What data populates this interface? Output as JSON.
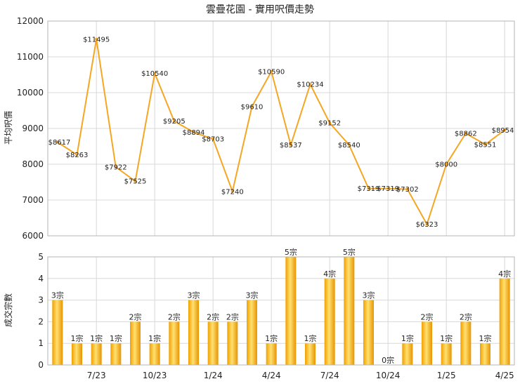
{
  "chart_data": [
    {
      "type": "line",
      "title": "雲疊花園 - 實用呎價走勢",
      "ylabel": "平均呎價",
      "ylim": [
        6000,
        12000
      ],
      "yticks": [
        6000,
        7000,
        8000,
        9000,
        10000,
        11000,
        12000
      ],
      "grid": true,
      "color": "#f5a623",
      "labels": [
        "$8617",
        "$8263",
        "$11495",
        "$7922",
        "$7525",
        "$10540",
        "$9205",
        "$8894",
        "$8703",
        "$7240",
        "$9610",
        "$10590",
        "$8537",
        "$10234",
        "$9152",
        "$8540",
        "$7319",
        "$7319",
        "$7302",
        "$6323",
        "$8000",
        "$8862",
        "$8551",
        "$8954"
      ],
      "values": [
        8617,
        8263,
        11495,
        7922,
        7525,
        10540,
        9205,
        8894,
        8703,
        7240,
        9610,
        10590,
        8537,
        10234,
        9152,
        8540,
        7319,
        7319,
        7302,
        6323,
        8000,
        8862,
        8551,
        8954
      ]
    },
    {
      "type": "bar",
      "ylabel": "成交宗數",
      "ylim": [
        0,
        5
      ],
      "yticks": [
        0,
        1,
        2,
        3,
        4,
        5
      ],
      "grid": true,
      "color": "#f5a623",
      "x_tick_labels": [
        "7/23",
        "10/23",
        "1/24",
        "4/24",
        "7/24",
        "10/24",
        "1/25",
        "4/25"
      ],
      "labels": [
        "3宗",
        "1宗",
        "1宗",
        "1宗",
        "2宗",
        "1宗",
        "2宗",
        "3宗",
        "2宗",
        "2宗",
        "3宗",
        "1宗",
        "5宗",
        "1宗",
        "4宗",
        "5宗",
        "3宗",
        "0宗",
        "1宗",
        "2宗",
        "1宗",
        "2宗",
        "1宗",
        "4宗"
      ],
      "values": [
        3,
        1,
        1,
        1,
        2,
        1,
        2,
        3,
        2,
        2,
        3,
        1,
        5,
        1,
        4,
        5,
        3,
        0,
        1,
        2,
        1,
        2,
        1,
        4
      ]
    }
  ]
}
